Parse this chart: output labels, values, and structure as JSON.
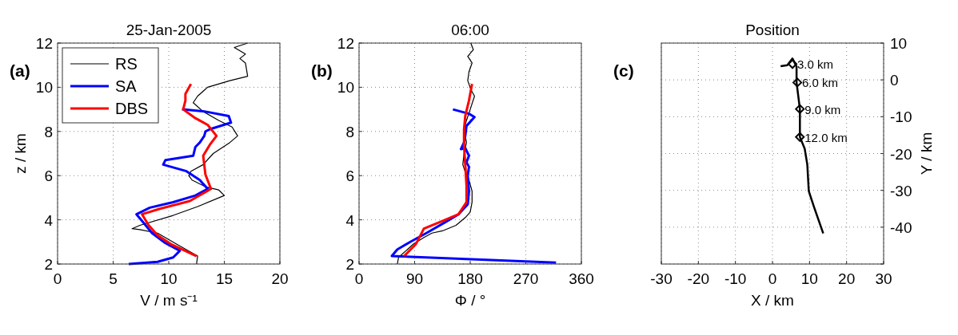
{
  "chart_data": [
    {
      "type": "line",
      "title": "25-Jan-2005",
      "xlabel": "V / m s⁻¹",
      "ylabel": "z / km",
      "xlim": [
        0,
        20
      ],
      "xticks": [
        0,
        5,
        10,
        15,
        20
      ],
      "ylim": [
        2,
        12
      ],
      "yticks": [
        2,
        4,
        6,
        8,
        10,
        12
      ],
      "grid": true,
      "legend": "top left",
      "annotations": [
        "(a)"
      ],
      "series": [
        {
          "name": "RS",
          "color": "#000000",
          "x": [
            12.5,
            12.6,
            10.7,
            9.0,
            7.4,
            6.7,
            7.4,
            10.4,
            12.6,
            15.0,
            14.5,
            13.3,
            12.1,
            11.8,
            12.0,
            13.1,
            14.0,
            15.5,
            16.2,
            15.7,
            14.5,
            13.1,
            12.2,
            12.6,
            13.5,
            15.5,
            17.1,
            16.9,
            16.4,
            16.9,
            15.9,
            17.1
          ],
          "values": [
            2,
            2.36,
            2.9,
            3.4,
            3.56,
            3.6,
            3.75,
            4.2,
            4.6,
            5.1,
            5.35,
            5.5,
            5.8,
            6.0,
            6.2,
            6.5,
            7.0,
            7.5,
            7.8,
            8.2,
            8.5,
            8.9,
            9.3,
            9.6,
            10.0,
            10.3,
            10.5,
            11.1,
            11.3,
            11.5,
            11.8,
            12
          ]
        },
        {
          "name": "SA",
          "color": "#0000ff",
          "x": [
            6.4,
            9.0,
            10.4,
            11.0,
            9.7,
            8.5,
            7.6,
            7.1,
            8.3,
            10.4,
            12.4,
            13.5,
            12.8,
            11.6,
            9.5,
            9.7,
            12.2,
            12.4,
            12.8,
            13.2,
            13.3,
            13.7,
            15.6,
            15.4,
            13.3,
            11.2
          ],
          "values": [
            2,
            2.1,
            2.3,
            2.6,
            2.95,
            3.4,
            3.95,
            4.25,
            4.55,
            4.8,
            5.1,
            5.4,
            5.8,
            6.2,
            6.5,
            6.7,
            6.9,
            7.3,
            7.5,
            7.8,
            8.0,
            8.1,
            8.4,
            8.7,
            8.9,
            9.0
          ]
        },
        {
          "name": "DBS",
          "color": "#ff0000",
          "x": [
            12.5,
            10.2,
            9.0,
            8.2,
            7.6,
            9.2,
            11.9,
            13.8,
            13.3,
            13.1,
            13.7,
            14.3,
            13.5,
            12.4,
            11.3,
            11.5,
            11.5,
            12.0
          ],
          "values": [
            2.36,
            2.9,
            3.3,
            3.75,
            4.25,
            4.5,
            4.85,
            5.4,
            6.05,
            6.9,
            7.4,
            7.8,
            8.3,
            8.6,
            9.0,
            9.4,
            9.7,
            10.15
          ]
        }
      ]
    },
    {
      "type": "line",
      "title": "06:00",
      "xlabel": "Φ / °",
      "xlim": [
        0,
        360
      ],
      "xticks": [
        0,
        90,
        180,
        270,
        360
      ],
      "ylim": [
        2,
        12
      ],
      "yticks": [
        2,
        4,
        6,
        8,
        10,
        12
      ],
      "grid": true,
      "annotations": [
        "(b)"
      ],
      "series": [
        {
          "color": "#000000",
          "x": [
            62,
            64,
            88,
            105,
            118,
            135,
            157,
            172,
            180,
            183,
            183,
            178,
            174,
            168,
            170,
            174,
            170,
            174,
            180,
            187,
            181,
            176,
            178,
            183,
            176,
            185,
            181
          ],
          "values": [
            2,
            2.3,
            2.9,
            3.2,
            3.4,
            3.5,
            3.75,
            4.1,
            4.35,
            4.8,
            5.3,
            5.8,
            6.0,
            6.5,
            7.0,
            7.5,
            8.1,
            8.5,
            9.0,
            9.6,
            9.9,
            10.3,
            10.7,
            11.1,
            11.4,
            11.7,
            12
          ]
        },
        {
          "color": "#0000ff",
          "x": [
            319,
            53,
            62,
            83,
            109,
            140,
            161,
            176,
            178,
            176,
            178,
            174,
            178,
            172,
            165,
            170,
            172,
            174,
            187,
            178,
            152
          ],
          "values": [
            2.06,
            2.36,
            2.66,
            3.0,
            3.4,
            3.9,
            4.25,
            4.7,
            5.3,
            6.0,
            6.4,
            6.6,
            6.9,
            7.25,
            7.2,
            7.5,
            7.8,
            8.25,
            8.65,
            8.8,
            9.0
          ]
        },
        {
          "color": "#ff0000",
          "x": [
            73,
            92,
            105,
            131,
            161,
            174,
            174,
            172,
            170,
            170,
            172,
            178,
            183
          ],
          "values": [
            2.36,
            2.9,
            3.6,
            3.9,
            4.25,
            4.8,
            5.55,
            6.5,
            7.35,
            8.1,
            8.7,
            9.4,
            10.15
          ]
        }
      ]
    },
    {
      "type": "line",
      "title": "Position",
      "xlabel": "X / km",
      "ylabel": "Y / km",
      "xlim": [
        -30,
        30
      ],
      "xticks": [
        -30,
        -20,
        -10,
        0,
        10,
        20,
        30
      ],
      "ylim": [
        -50,
        10
      ],
      "yticks": [
        {
          "value": -50,
          "label": null
        },
        -40,
        -30,
        -20,
        -10,
        0,
        10
      ],
      "grid": true,
      "annotations": [
        "(c)",
        {
          "text": "3.0 km",
          "x": 5.4,
          "y": 4.3
        },
        {
          "text": "6.0 km",
          "x": 6.7,
          "y": -0.7
        },
        {
          "text": "9.0 km",
          "x": 7.4,
          "y": -7.9
        },
        {
          "text": "12.0 km",
          "x": 7.4,
          "y": -15.5
        }
      ],
      "series": [
        {
          "color": "#000000",
          "x": [
            2.2,
            4.0,
            5.4,
            6.5,
            6.5,
            7.4,
            7.4,
            8.7,
            9.4,
            9.8,
            11.2,
            13.7
          ],
          "values": [
            3.7,
            4.0,
            5.8,
            3.6,
            -0.7,
            -7.9,
            -15.5,
            -18.7,
            -23,
            -30.2,
            -34.5,
            -41.7
          ]
        },
        {
          "type": "scatter",
          "marker": "diamond",
          "color": "#000000",
          "x": [
            5.4,
            6.7,
            7.4,
            7.4
          ],
          "values": [
            4.3,
            -0.7,
            -7.9,
            -15.5
          ]
        }
      ]
    }
  ]
}
